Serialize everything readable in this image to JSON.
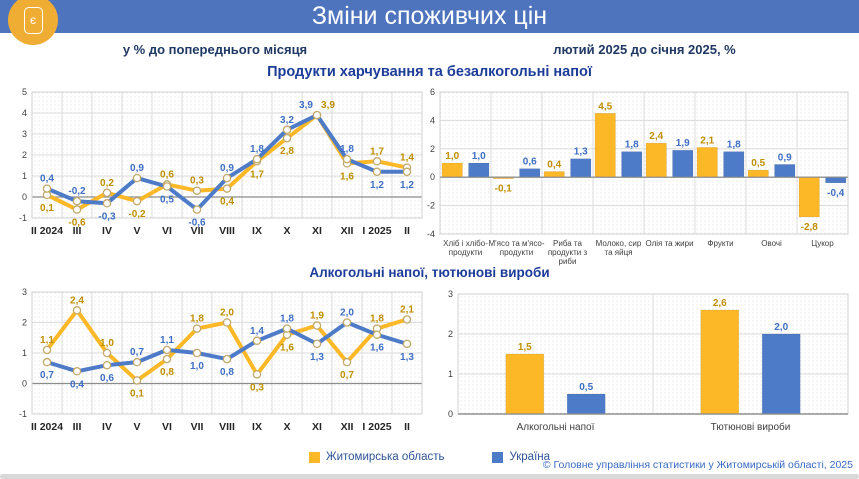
{
  "header": {
    "title": "Зміни споживчих цін",
    "logo_letter": "є"
  },
  "subtitles": {
    "left": "у % до попереднього місяця",
    "right": "лютий 2025 до січня 2025, %"
  },
  "legend": {
    "items": [
      {
        "label": "Житомирська область",
        "series": "region"
      },
      {
        "label": "Україна",
        "series": "ukraine"
      }
    ],
    "position": "bottom-center"
  },
  "footer": {
    "copyright": "© Головне управління статистики у Житомирській області, 2025"
  },
  "colors": {
    "header_bg": "#4E74BE",
    "logo_bg": "#EFAD33",
    "series_region": "#FCB827",
    "series_ukraine": "#4E7BC8",
    "label_region": "#BF8F00",
    "label_ukraine": "#3E6FC4",
    "section_title": "#1C3C99",
    "subtitle_text": "#1F3864",
    "legend_text": "#2F5496",
    "footer_text": "#3A6BC4",
    "gridline": "#DCDCDC",
    "zero_line": "#8C8C8C",
    "tick_text": "#404040"
  },
  "chart_data": [
    {
      "type": "line",
      "title": "Продукти харчування та безалкогольні напої",
      "xlabel": "",
      "ylabel": "",
      "categories": [
        "II 2024",
        "III",
        "IV",
        "V",
        "VI",
        "VII",
        "VIII",
        "IX",
        "X",
        "XI",
        "XII",
        "I 2025",
        "II"
      ],
      "series": [
        {
          "name": "Житомирська область",
          "values": [
            0.1,
            -0.6,
            0.2,
            -0.2,
            0.6,
            0.3,
            0.4,
            1.7,
            2.8,
            3.9,
            1.6,
            1.7,
            1.4
          ]
        },
        {
          "name": "Україна",
          "values": [
            0.4,
            -0.2,
            -0.3,
            0.9,
            0.5,
            -0.6,
            0.9,
            1.8,
            3.2,
            3.9,
            1.8,
            1.2,
            1.2
          ]
        }
      ],
      "ylim": [
        -1,
        5
      ],
      "ytick_step": 1,
      "grid": true
    },
    {
      "type": "bar",
      "title": "Продукти харчування та безалкогольні напої",
      "xlabel": "",
      "ylabel": "",
      "categories": [
        "Хліб і хлібо-\nпродукти",
        "М'ясо та м'ясо-\nпродукти",
        "Риба та\nпродукти з\nриби",
        "Молоко, сир\nта яйця",
        "Олія та жири",
        "Фрукти",
        "Овочі",
        "Цукор"
      ],
      "series": [
        {
          "name": "Житомирська область",
          "values": [
            1.0,
            -0.1,
            0.4,
            4.5,
            2.4,
            2.1,
            0.5,
            -2.8
          ]
        },
        {
          "name": "Україна",
          "values": [
            1.0,
            0.6,
            1.3,
            1.8,
            1.9,
            1.8,
            0.9,
            -0.4
          ]
        }
      ],
      "ylim": [
        -4,
        6
      ],
      "ytick_step": 2,
      "grid": true
    },
    {
      "type": "line",
      "title": "Алкогольні напої, тютюнові вироби",
      "xlabel": "",
      "ylabel": "",
      "categories": [
        "II 2024",
        "III",
        "IV",
        "V",
        "VI",
        "VII",
        "VIII",
        "IX",
        "X",
        "XI",
        "XII",
        "I 2025",
        "II"
      ],
      "series": [
        {
          "name": "Житомирська область",
          "values": [
            1.1,
            2.4,
            1.0,
            0.1,
            0.8,
            1.8,
            2.0,
            0.3,
            1.6,
            1.9,
            0.7,
            1.8,
            2.1
          ]
        },
        {
          "name": "Україна",
          "values": [
            0.7,
            0.4,
            0.6,
            0.7,
            1.1,
            1.0,
            0.8,
            1.4,
            1.8,
            1.3,
            2.0,
            1.6,
            1.3
          ]
        }
      ],
      "ylim": [
        -1,
        3
      ],
      "ytick_step": 1,
      "grid": true
    },
    {
      "type": "bar",
      "title": "Алкогольні напої, тютюнові вироби",
      "xlabel": "",
      "ylabel": "",
      "categories": [
        "Алкогольні напої",
        "Тютюнові вироби"
      ],
      "series": [
        {
          "name": "Житомирська область",
          "values": [
            1.5,
            2.6
          ]
        },
        {
          "name": "Україна",
          "values": [
            0.5,
            2.0
          ]
        }
      ],
      "ylim": [
        0,
        3
      ],
      "ytick_step": 1,
      "grid": true
    }
  ]
}
